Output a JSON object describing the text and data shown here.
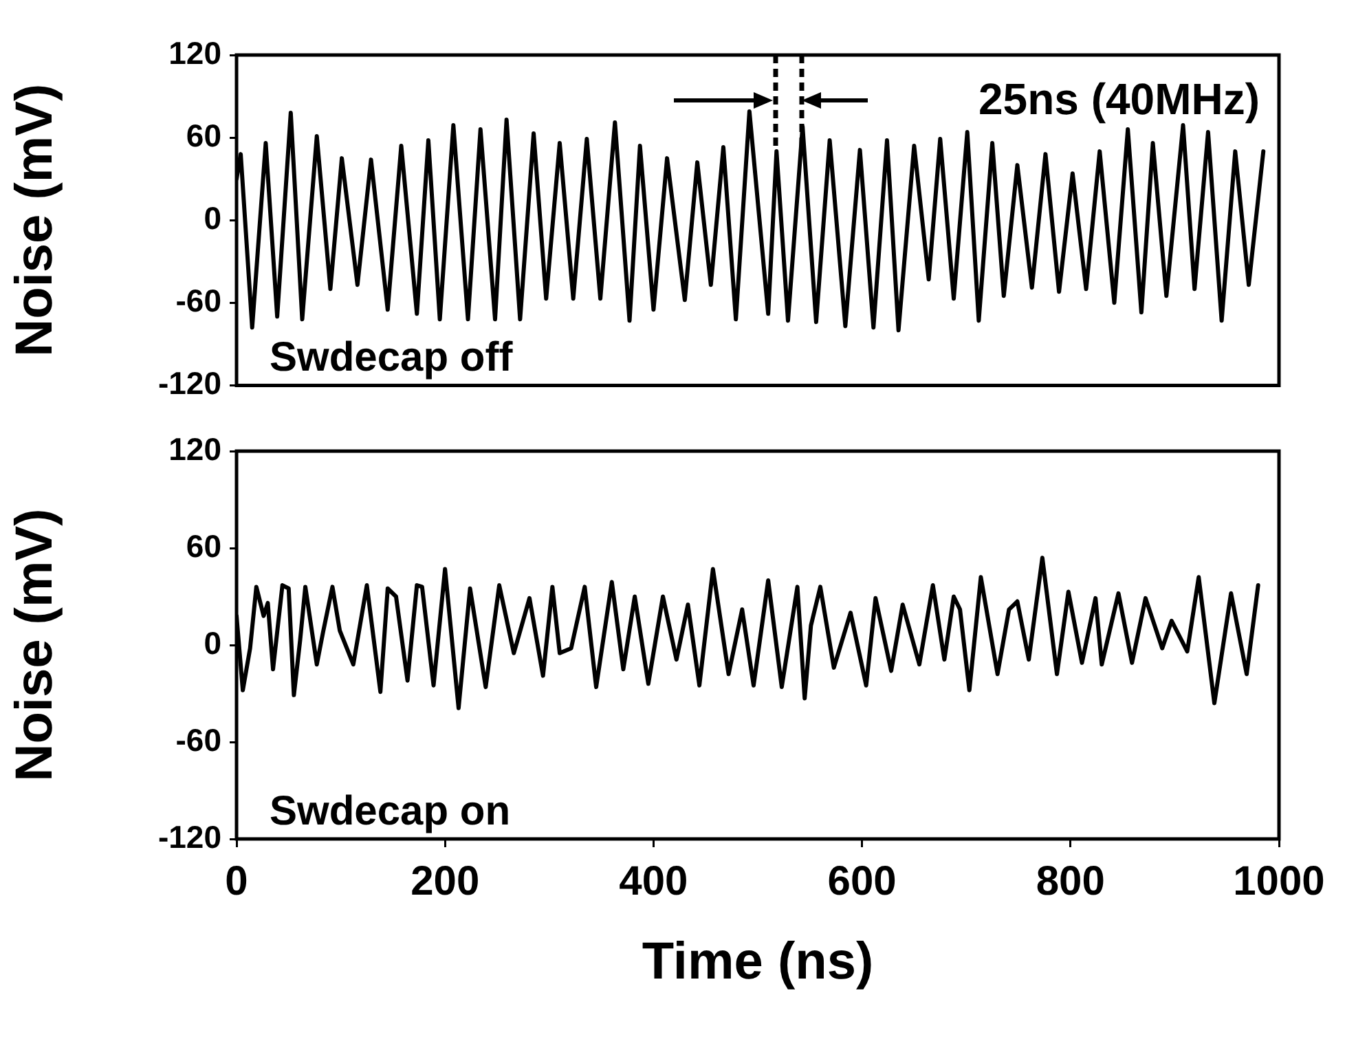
{
  "chart_data": [
    {
      "type": "line",
      "ylabel": "Noise (mV)",
      "xlim": [
        0,
        1000
      ],
      "xticks": [
        0,
        200,
        400,
        600,
        800,
        1000
      ],
      "ylim": [
        -120,
        120
      ],
      "yticks": [
        -120,
        -60,
        0,
        60,
        120
      ],
      "tick_labels": "y",
      "legend": false,
      "grid": false,
      "annotations": [
        "Swdecap off",
        "25ns (40MHz)"
      ],
      "series": [
        {
          "color": "#000000",
          "x": [
            0,
            4,
            15,
            28,
            39,
            52,
            63,
            77,
            90,
            101,
            116,
            129,
            145,
            158,
            173,
            184,
            195,
            208,
            222,
            234,
            248,
            259,
            272,
            285,
            297,
            310,
            323,
            336,
            349,
            363,
            377,
            387,
            400,
            413,
            430,
            442,
            455,
            467,
            479,
            492,
            510,
            518,
            529,
            543,
            556,
            569,
            584,
            598,
            611,
            624,
            635,
            650,
            664,
            675,
            688,
            701,
            712,
            725,
            736,
            749,
            763,
            776,
            789,
            802,
            815,
            828,
            842,
            855,
            868,
            879,
            892,
            908,
            919,
            932,
            945,
            958,
            971,
            985
          ],
          "values": [
            30,
            48,
            -78,
            56,
            -70,
            78,
            -72,
            61,
            -50,
            45,
            -47,
            44,
            -65,
            54,
            -68,
            58,
            -72,
            69,
            -72,
            66,
            -72,
            73,
            -72,
            63,
            -57,
            56,
            -57,
            59,
            -57,
            71,
            -73,
            54,
            -65,
            45,
            -58,
            42,
            -47,
            53,
            -72,
            79,
            -68,
            50,
            -73,
            68,
            -74,
            58,
            -77,
            51,
            -78,
            58,
            -80,
            54,
            -43,
            59,
            -57,
            64,
            -73,
            56,
            -55,
            40,
            -49,
            48,
            -52,
            34,
            -50,
            50,
            -60,
            66,
            -67,
            56,
            -55,
            69,
            -50,
            64,
            -73,
            50,
            -47,
            50
          ]
        }
      ]
    },
    {
      "type": "line",
      "xlabel": "Time (ns)",
      "ylabel": "Noise (mV)",
      "xlim": [
        0,
        1000
      ],
      "xticks": [
        0,
        200,
        400,
        600,
        800,
        1000
      ],
      "ylim": [
        -120,
        120
      ],
      "yticks": [
        -120,
        -60,
        0,
        60,
        120
      ],
      "legend": false,
      "grid": false,
      "annotations": [
        "Swdecap on"
      ],
      "series": [
        {
          "color": "#000000",
          "x": [
            0,
            6,
            13,
            19,
            26,
            30,
            35,
            44,
            50,
            55,
            61,
            66,
            77,
            83,
            92,
            99,
            112,
            125,
            138,
            145,
            153,
            164,
            173,
            178,
            189,
            200,
            213,
            224,
            239,
            252,
            266,
            281,
            294,
            303,
            310,
            321,
            334,
            345,
            360,
            371,
            382,
            395,
            409,
            422,
            433,
            444,
            457,
            472,
            485,
            496,
            510,
            523,
            538,
            545,
            551,
            560,
            573,
            589,
            604,
            613,
            628,
            639,
            655,
            668,
            679,
            688,
            694,
            703,
            714,
            730,
            741,
            749,
            760,
            773,
            787,
            798,
            811,
            824,
            830,
            846,
            859,
            872,
            888,
            897,
            912,
            923,
            938,
            954,
            969,
            980
          ],
          "values": [
            18,
            -28,
            -2,
            36,
            18,
            26,
            -15,
            37,
            35,
            -31,
            3,
            36,
            -12,
            8,
            36,
            9,
            -12,
            37,
            -29,
            35,
            30,
            -22,
            37,
            36,
            -25,
            47,
            -39,
            35,
            -26,
            37,
            -5,
            29,
            -19,
            36,
            -5,
            -2,
            36,
            -26,
            39,
            -15,
            30,
            -24,
            30,
            -9,
            25,
            -25,
            47,
            -18,
            22,
            -25,
            40,
            -26,
            36,
            -33,
            12,
            36,
            -14,
            20,
            -25,
            29,
            -16,
            25,
            -12,
            37,
            -9,
            30,
            22,
            -28,
            42,
            -18,
            22,
            27,
            -9,
            54,
            -18,
            33,
            -11,
            29,
            -12,
            32,
            -11,
            29,
            -2,
            15,
            -4,
            42,
            -36,
            32,
            -18,
            37
          ]
        }
      ]
    }
  ]
}
